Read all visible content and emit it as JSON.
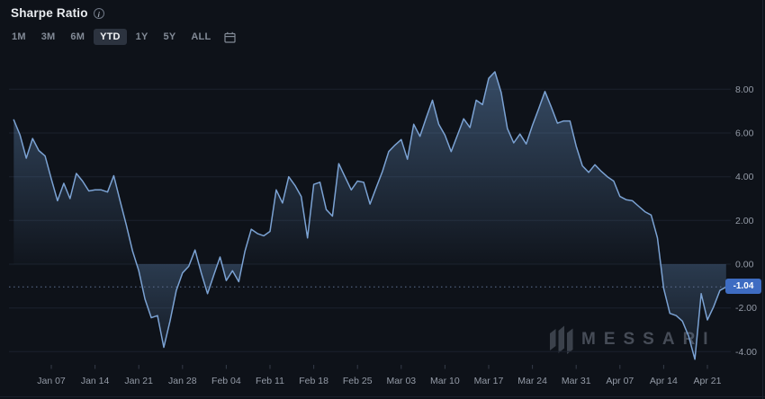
{
  "header": {
    "title": "Sharpe Ratio",
    "info_icon": "i",
    "ranges": [
      {
        "label": "1M",
        "active": false
      },
      {
        "label": "3M",
        "active": false
      },
      {
        "label": "6M",
        "active": false
      },
      {
        "label": "YTD",
        "active": true
      },
      {
        "label": "1Y",
        "active": false
      },
      {
        "label": "5Y",
        "active": false
      },
      {
        "label": "ALL",
        "active": false
      }
    ]
  },
  "watermark": {
    "text": "MESSARI"
  },
  "chart": {
    "current_value_label": "-1.04"
  },
  "chart_data": {
    "type": "area",
    "title": "Sharpe Ratio",
    "frequency": "daily",
    "x_start": "Jan 01",
    "x_end": "Apr 24",
    "x_tick_labels": [
      "Jan 07",
      "Jan 14",
      "Jan 21",
      "Jan 28",
      "Feb 04",
      "Feb 11",
      "Feb 18",
      "Feb 25",
      "Mar 03",
      "Mar 10",
      "Mar 17",
      "Mar 24",
      "Mar 31",
      "Apr 07",
      "Apr 14",
      "Apr 21"
    ],
    "y_ticks": [
      8,
      6,
      4,
      2,
      0,
      -2,
      -4
    ],
    "y_tick_labels": [
      "8.00",
      "6.00",
      "4.00",
      "2.00",
      "0.00",
      "-2.00",
      "-4.00"
    ],
    "ylim": [
      -4.8,
      9.2
    ],
    "y_axis_side": "right",
    "grid": "horizontal",
    "legend": "none",
    "baseline": 0,
    "last_value": -1.04,
    "series": [
      {
        "name": "Sharpe Ratio",
        "values": [
          6.6,
          5.9,
          4.85,
          5.75,
          5.2,
          4.95,
          3.9,
          2.9,
          3.7,
          3.0,
          4.15,
          3.8,
          3.35,
          3.4,
          3.4,
          3.3,
          4.05,
          2.9,
          1.8,
          0.6,
          -0.3,
          -1.6,
          -2.45,
          -2.35,
          -3.8,
          -2.6,
          -1.2,
          -0.4,
          -0.1,
          0.65,
          -0.4,
          -1.35,
          -0.5,
          0.33,
          -0.75,
          -0.3,
          -0.8,
          0.6,
          1.6,
          1.4,
          1.3,
          1.5,
          3.4,
          2.8,
          4.0,
          3.6,
          3.1,
          1.2,
          3.65,
          3.75,
          2.5,
          2.2,
          4.6,
          4.0,
          3.4,
          3.8,
          3.75,
          2.75,
          3.5,
          4.25,
          5.15,
          5.45,
          5.7,
          4.8,
          6.4,
          5.85,
          6.7,
          7.5,
          6.4,
          5.9,
          5.15,
          5.9,
          6.65,
          6.25,
          7.5,
          7.3,
          8.5,
          8.8,
          7.85,
          6.2,
          5.55,
          5.95,
          5.5,
          6.35,
          7.1,
          7.9,
          7.2,
          6.45,
          6.55,
          6.55,
          5.4,
          4.5,
          4.2,
          4.55,
          4.25,
          4.0,
          3.8,
          3.1,
          2.95,
          2.9,
          2.65,
          2.4,
          2.25,
          1.2,
          -1.1,
          -2.25,
          -2.35,
          -2.6,
          -3.3,
          -4.35,
          -1.35,
          -2.55,
          -1.95,
          -1.2,
          -1.04
        ]
      }
    ],
    "colors": {
      "line": "#7BA2D3",
      "fill": "#6D99CC",
      "badge": "#3E6CC2",
      "background": "#0E1219",
      "grid": "#1B212D",
      "axis_text": "#949BA7",
      "dotted_line": "#5E6F92"
    }
  }
}
